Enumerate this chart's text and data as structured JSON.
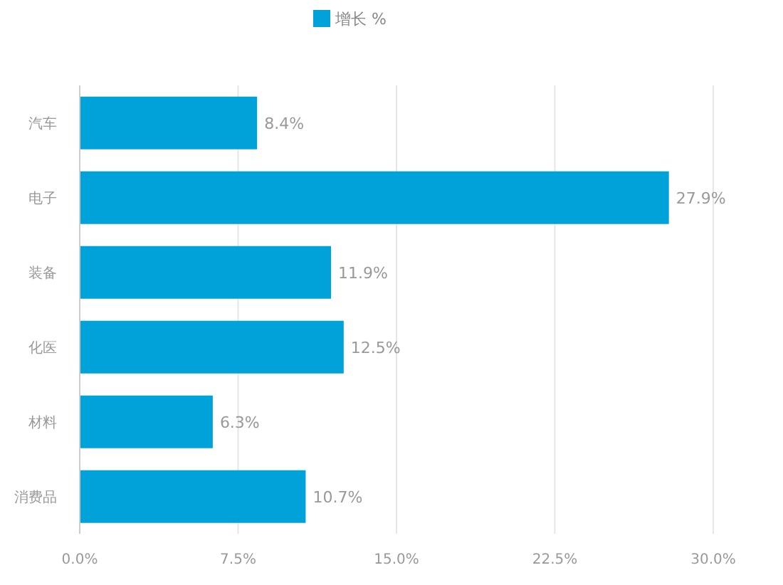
{
  "chart_data": {
    "type": "bar",
    "orientation": "horizontal",
    "legend": "top",
    "grid": "x",
    "categories": [
      "汽车",
      "电子",
      "装备",
      "化医",
      "材料",
      "消费品"
    ],
    "series": [
      {
        "name": "增长 %",
        "color": "#00a3d9",
        "values": [
          8.4,
          27.9,
          11.9,
          12.5,
          6.3,
          10.7
        ],
        "value_labels": [
          "8.4%",
          "27.9%",
          "11.9%",
          "12.5%",
          "6.3%",
          "10.7%"
        ]
      }
    ],
    "xlim": [
      0,
      30
    ],
    "xticks": [
      {
        "value": 0,
        "label": "0.0%"
      },
      {
        "value": 7.5,
        "label": "7.5%"
      },
      {
        "value": 15,
        "label": "15.0%"
      },
      {
        "value": 22.5,
        "label": "22.5%"
      },
      {
        "value": 30,
        "label": "30.0%"
      }
    ]
  }
}
